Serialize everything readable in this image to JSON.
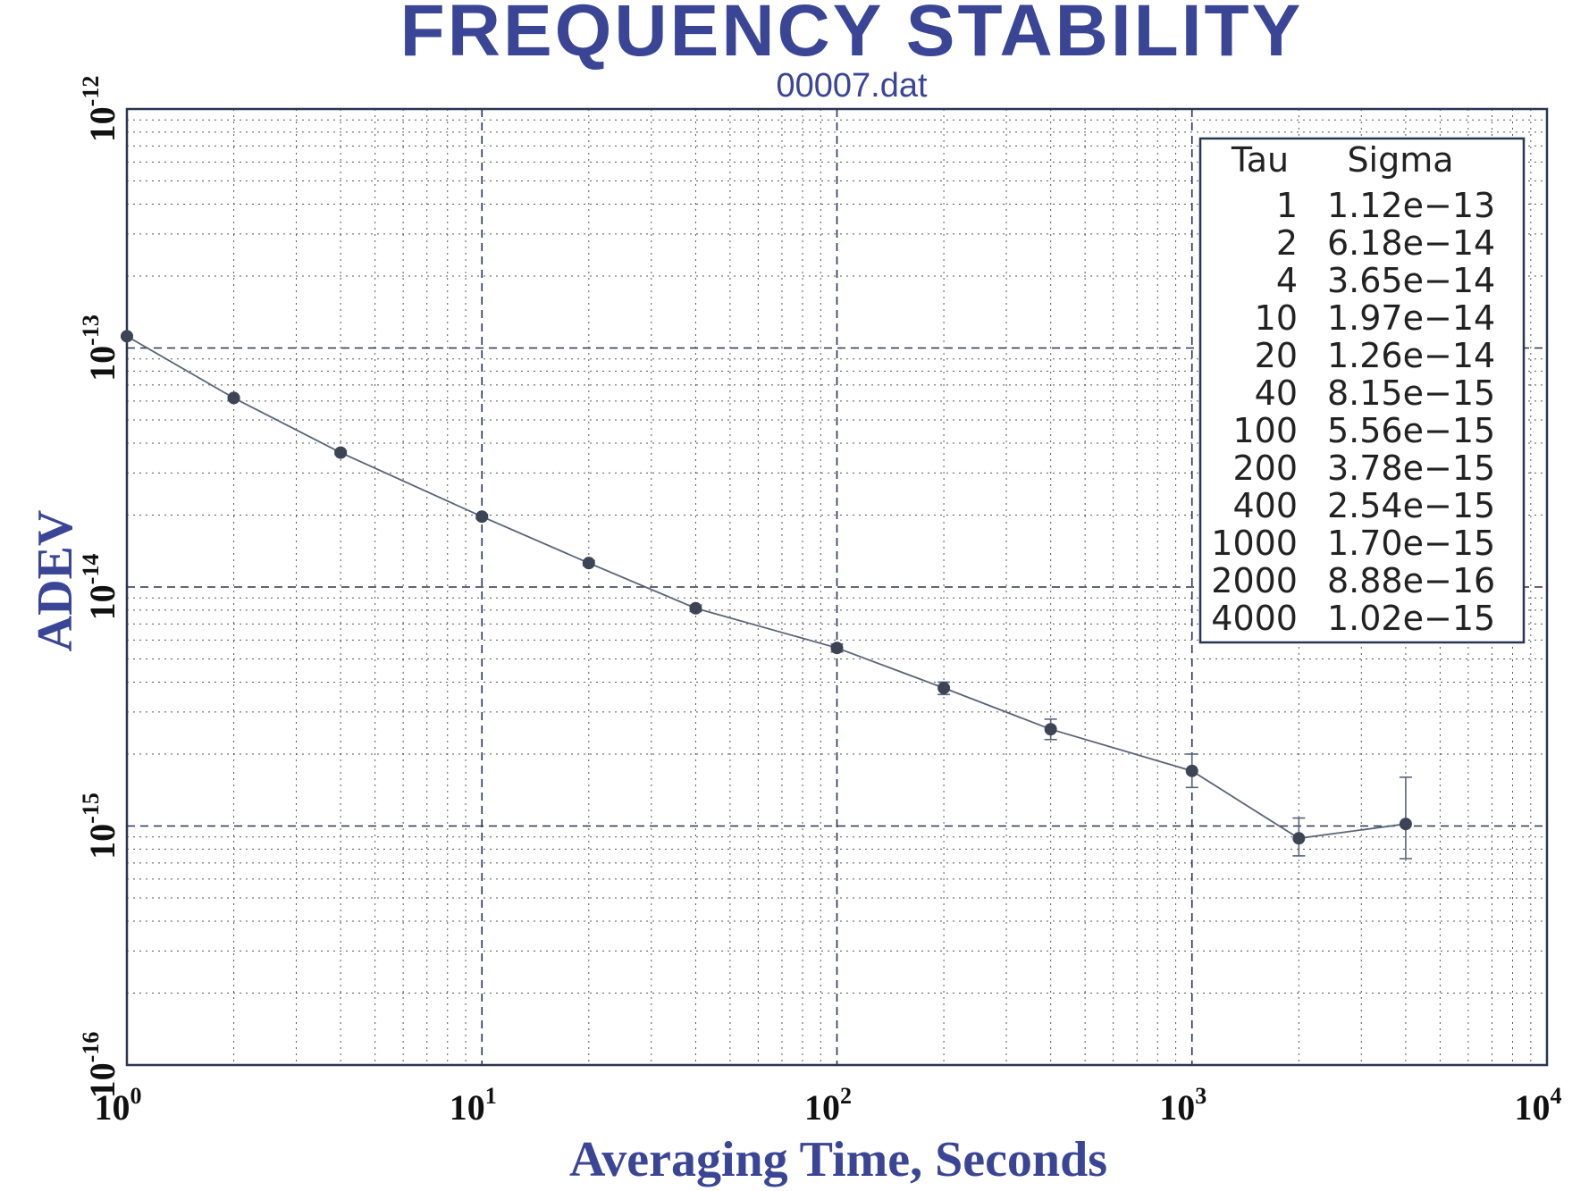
{
  "chart_data": {
    "type": "scatter",
    "title": "FREQUENCY STABILITY",
    "subtitle": "00007.dat",
    "xlabel": "Averaging Time, Seconds",
    "ylabel": "ADEV",
    "x_scale": "log",
    "y_scale": "log",
    "xlim": [
      1,
      10000
    ],
    "ylim": [
      1e-16,
      1e-12
    ],
    "x_ticks": [
      {
        "base": "10",
        "exp": "0"
      },
      {
        "base": "10",
        "exp": "1"
      },
      {
        "base": "10",
        "exp": "2"
      },
      {
        "base": "10",
        "exp": "3"
      },
      {
        "base": "10",
        "exp": "4"
      }
    ],
    "y_ticks": [
      {
        "base": "10",
        "exp": "-16"
      },
      {
        "base": "10",
        "exp": "-15"
      },
      {
        "base": "10",
        "exp": "-14"
      },
      {
        "base": "10",
        "exp": "-13"
      },
      {
        "base": "10",
        "exp": "-12"
      }
    ],
    "grid": true,
    "legend_position": "top-right",
    "legend_headers": [
      "Tau",
      "Sigma"
    ],
    "series": [
      {
        "x": [
          1,
          2,
          4,
          10,
          20,
          40,
          100,
          200,
          400,
          1000,
          2000,
          4000
        ],
        "y": [
          1.12e-13,
          6.18e-14,
          3.65e-14,
          1.97e-14,
          1.26e-14,
          8.15e-15,
          5.56e-15,
          3.78e-15,
          2.54e-15,
          1.7e-15,
          8.88e-16,
          1.02e-15
        ],
        "error_low": [
          1.11e-13,
          6.1e-14,
          3.59e-14,
          1.93e-14,
          1.23e-14,
          7.9e-15,
          5.35e-15,
          3.55e-15,
          2.3e-15,
          1.45e-15,
          7.5e-16,
          7.3e-16
        ],
        "error_high": [
          1.13e-13,
          6.26e-14,
          3.71e-14,
          2.01e-14,
          1.29e-14,
          8.4e-15,
          5.77e-15,
          4e-15,
          2.8e-15,
          2e-15,
          1.08e-15,
          1.6e-15
        ]
      }
    ],
    "table": [
      {
        "tau": "1",
        "sigma": "1.12e−13"
      },
      {
        "tau": "2",
        "sigma": "6.18e−14"
      },
      {
        "tau": "4",
        "sigma": "3.65e−14"
      },
      {
        "tau": "10",
        "sigma": "1.97e−14"
      },
      {
        "tau": "20",
        "sigma": "1.26e−14"
      },
      {
        "tau": "40",
        "sigma": "8.15e−15"
      },
      {
        "tau": "100",
        "sigma": "5.56e−15"
      },
      {
        "tau": "200",
        "sigma": "3.78e−15"
      },
      {
        "tau": "400",
        "sigma": "2.54e−15"
      },
      {
        "tau": "1000",
        "sigma": "1.70e−15"
      },
      {
        "tau": "2000",
        "sigma": "8.88e−16"
      },
      {
        "tau": "4000",
        "sigma": "1.02e−15"
      }
    ],
    "colors": {
      "title": "#3a4596",
      "axis_label": "#3a4596",
      "frame": "#2a3452",
      "grid_major": "#2a3452",
      "grid_minor": "#555555",
      "series": "#5a6478",
      "marker": "#3d4455"
    }
  }
}
